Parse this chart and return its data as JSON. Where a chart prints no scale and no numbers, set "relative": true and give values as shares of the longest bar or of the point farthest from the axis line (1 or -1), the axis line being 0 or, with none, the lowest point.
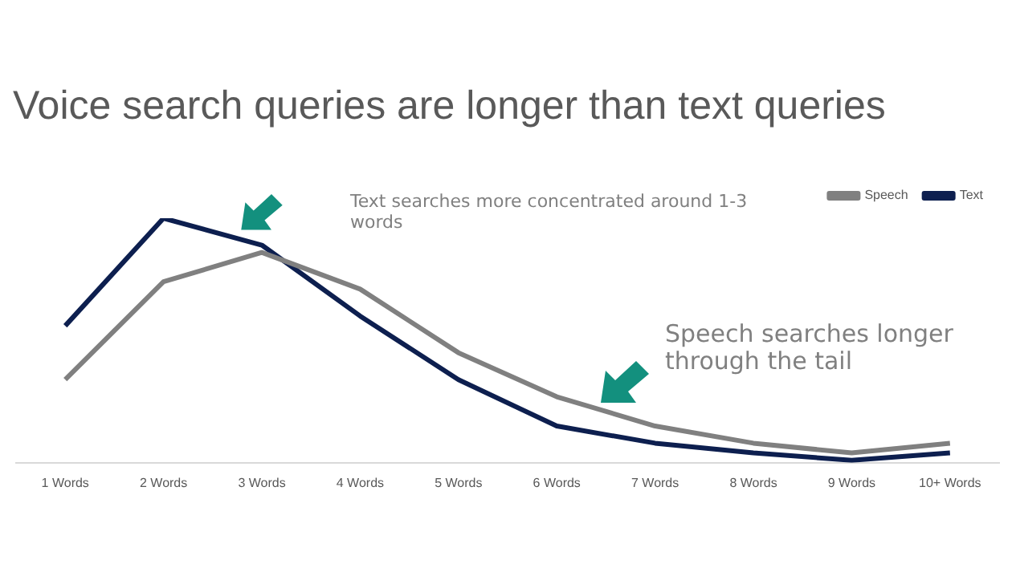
{
  "chart_data": {
    "type": "line",
    "title": "Voice search queries are longer than text queries",
    "relative": true,
    "categories": [
      "1 Words",
      "2 Words",
      "3 Words",
      "4 Words",
      "5 Words",
      "6 Words",
      "7 Words",
      "8 Words",
      "9 Words",
      "10+ Words"
    ],
    "series": [
      {
        "name": "Speech",
        "color": "#808080",
        "values": [
          0.34,
          0.74,
          0.86,
          0.71,
          0.45,
          0.27,
          0.15,
          0.08,
          0.04,
          0.08
        ]
      },
      {
        "name": "Text",
        "color": "#0d1f4f",
        "values": [
          0.56,
          1,
          0.89,
          0.6,
          0.34,
          0.15,
          0.08,
          0.04,
          0.01,
          0.04
        ]
      }
    ],
    "annotations": [
      "Text searches more concentrated around 1-3 words",
      "Speech searches longer through the tail"
    ],
    "legend": "top right",
    "grid": false,
    "marker": "none",
    "line_style": "solid"
  }
}
